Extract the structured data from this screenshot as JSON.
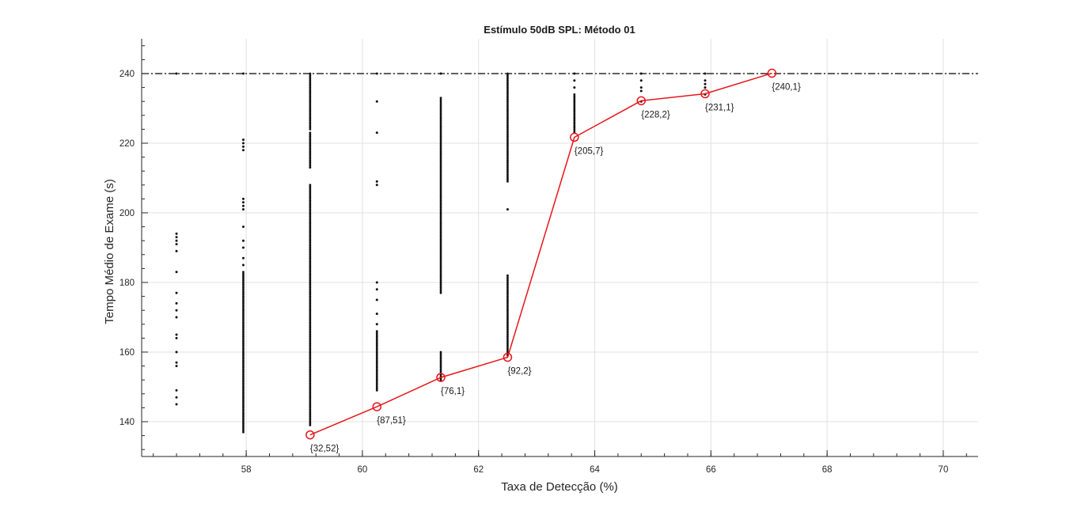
{
  "chart_data": {
    "type": "scatter",
    "title": "Estímulo 50dB SPL: Método 01",
    "xlabel": "Taxa de Detecção (%)",
    "ylabel": "Tempo Médio de Exame (s)",
    "xlim": [
      56.2,
      70.6
    ],
    "ylim": [
      130,
      250
    ],
    "xticks": [
      58,
      60,
      62,
      64,
      66,
      68,
      70
    ],
    "yticks": [
      140,
      160,
      180,
      200,
      220,
      240
    ],
    "grid": true,
    "reference_line": {
      "y": 240,
      "style": "dash-dot",
      "color": "#000000"
    },
    "scatter_series": [
      {
        "x": 56.8,
        "y": [
          145,
          147,
          149,
          156,
          157,
          160,
          164,
          165,
          170,
          172,
          174,
          177,
          183,
          189,
          191,
          192,
          193,
          194,
          240
        ]
      },
      {
        "x": 57.95,
        "y_ranges": [
          [
            137,
            183
          ]
        ],
        "y": [
          185,
          187,
          190,
          192,
          196,
          201,
          202,
          203,
          204,
          218,
          219,
          220,
          221,
          240
        ]
      },
      {
        "x": 59.1,
        "y_ranges": [
          [
            139,
            208
          ],
          [
            213,
            223
          ],
          [
            224,
            240
          ]
        ],
        "y": []
      },
      {
        "x": 60.25,
        "y_ranges": [
          [
            149,
            166
          ]
        ],
        "y": [
          168,
          171,
          175,
          178,
          180,
          208,
          209,
          223,
          232,
          240
        ]
      },
      {
        "x": 61.35,
        "y_ranges": [
          [
            152,
            160
          ],
          [
            177,
            233
          ]
        ],
        "y": [
          240
        ]
      },
      {
        "x": 62.5,
        "y_ranges": [
          [
            159,
            182
          ],
          [
            209,
            240
          ]
        ],
        "y": [
          201
        ]
      },
      {
        "x": 63.65,
        "y_ranges": [
          [
            223,
            234
          ]
        ],
        "y": [
          236,
          238,
          240
        ]
      },
      {
        "x": 64.8,
        "y": [
          232,
          235,
          236,
          238,
          240
        ]
      },
      {
        "x": 65.9,
        "y": [
          234,
          236,
          237,
          238,
          240
        ]
      }
    ],
    "series": [
      {
        "color": "#e8141a",
        "marker": "circle",
        "points": [
          {
            "x": 59.1,
            "y": 136.2,
            "label": "{32,52}"
          },
          {
            "x": 60.25,
            "y": 144.3,
            "label": "{87,51}"
          },
          {
            "x": 61.35,
            "y": 152.7,
            "label": "{76,1}"
          },
          {
            "x": 62.5,
            "y": 158.5,
            "label": "{92,2}"
          },
          {
            "x": 63.65,
            "y": 221.7,
            "label": "{205,7}"
          },
          {
            "x": 64.8,
            "y": 232.2,
            "label": "{228,2}"
          },
          {
            "x": 65.9,
            "y": 234.2,
            "label": "{231,1}"
          },
          {
            "x": 67.05,
            "y": 240.1,
            "label": "{240,1}"
          }
        ]
      }
    ]
  }
}
